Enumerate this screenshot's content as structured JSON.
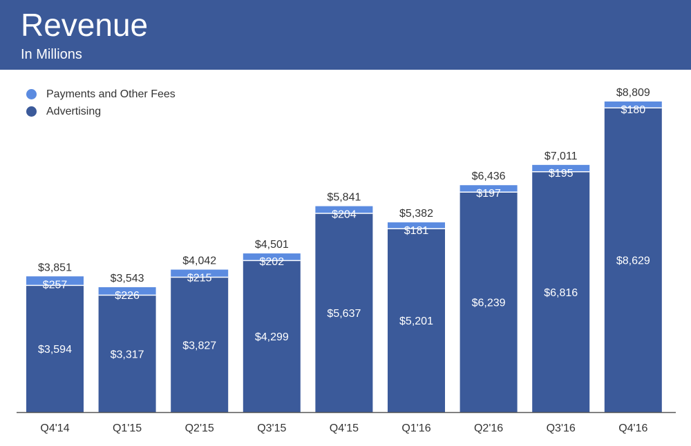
{
  "header": {
    "title": "Revenue",
    "subtitle": "In Millions"
  },
  "colors": {
    "header": "#3b5998",
    "advertising": "#3b5a9a",
    "payments": "#5b8be0",
    "axis": "#555555"
  },
  "chart_data": {
    "type": "bar",
    "stacked": true,
    "title": "Revenue",
    "subtitle": "In Millions",
    "categories": [
      "Q4'14",
      "Q1'15",
      "Q2'15",
      "Q3'15",
      "Q4'15",
      "Q1'16",
      "Q2'16",
      "Q3'16",
      "Q4'16"
    ],
    "series": [
      {
        "name": "Advertising",
        "values": [
          3594,
          3317,
          3827,
          4299,
          5637,
          5201,
          6239,
          6816,
          8629
        ],
        "labels": [
          "$3,594",
          "$3,317",
          "$3,827",
          "$4,299",
          "$5,637",
          "$5,201",
          "$6,239",
          "$6,816",
          "$8,629"
        ]
      },
      {
        "name": "Payments and Other Fees",
        "values": [
          257,
          226,
          215,
          202,
          204,
          181,
          197,
          195,
          180
        ],
        "labels": [
          "$257",
          "$226",
          "$215",
          "$202",
          "$204",
          "$181",
          "$197",
          "$195",
          "$180"
        ]
      }
    ],
    "totals": [
      3851,
      3543,
      4042,
      4501,
      5841,
      5382,
      6436,
      7011,
      8809
    ],
    "total_labels": [
      "$3,851",
      "$3,543",
      "$4,042",
      "$4,501",
      "$5,841",
      "$5,382",
      "$6,436",
      "$7,011",
      "$8,809"
    ],
    "legend": [
      "Payments and Other Fees",
      "Advertising"
    ],
    "legend_position": "top-left",
    "ylim": [
      0,
      8809
    ],
    "grid": false
  }
}
